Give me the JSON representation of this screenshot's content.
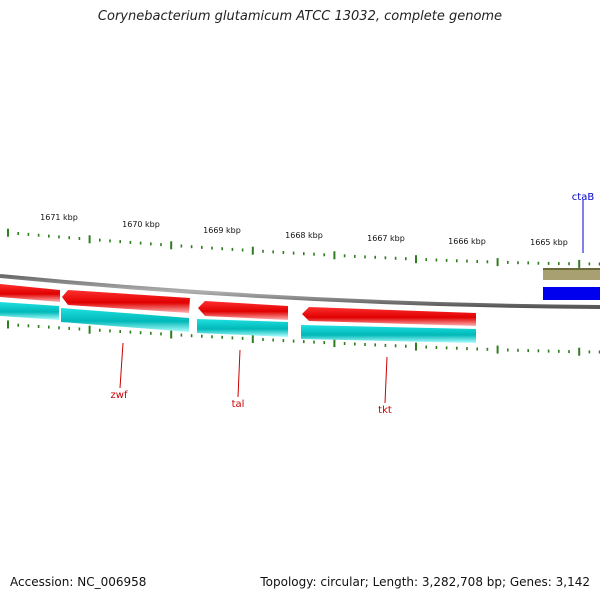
{
  "title": "Corynebacterium glutamicum ATCC 13032, complete genome",
  "footer": {
    "accession": "Accession: NC_006958",
    "stats": "Topology: circular; Length: 3,282,708 bp; Genes: 3,142"
  },
  "scale_labels": [
    "1671 kbp",
    "1670 kbp",
    "1669 kbp",
    "1668 kbp",
    "1667 kbp",
    "1666 kbp",
    "1665 kbp"
  ],
  "genes": [
    {
      "name": "zwf",
      "color": "#cc0000"
    },
    {
      "name": "tal",
      "color": "#cc0000"
    },
    {
      "name": "tkt",
      "color": "#cc0000"
    },
    {
      "name": "ctaB",
      "color": "#0000cc"
    }
  ],
  "colors": {
    "backbone": "#8c8c8c",
    "forward_cds": "#ee0000",
    "reverse_cds": "#00cccc",
    "ctaB_feature": "#0000ee",
    "ctaB_track": "#a8a070",
    "ticks": "#2e7d1e"
  }
}
